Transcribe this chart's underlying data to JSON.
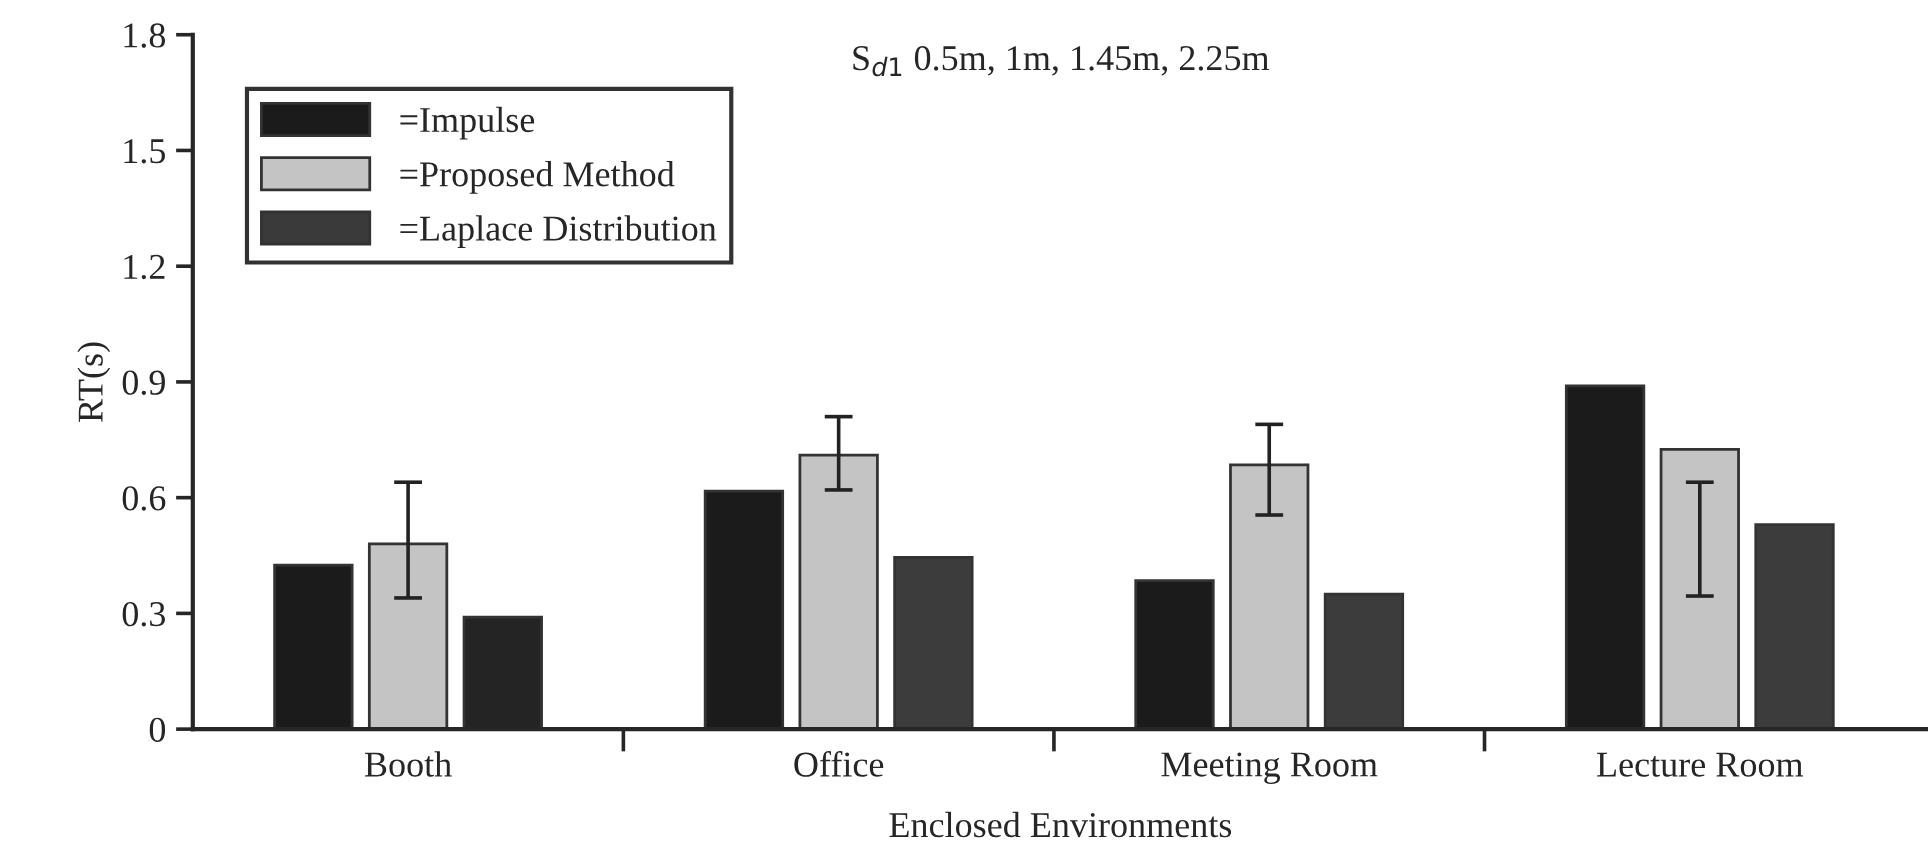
{
  "chart_data": {
    "type": "bar",
    "title": "S$_{d1}$ 0.5m, 1m, 1.45m, 2.25m",
    "xlabel": "Enclosed Environments",
    "ylabel": "RT(s)",
    "categories": [
      "Booth",
      "Office",
      "Meeting Room",
      "Lecture Room"
    ],
    "series": [
      {
        "name": "=Impulse",
        "color": "#1b1b1b",
        "values": [
          0.425,
          0.617,
          0.385,
          0.89
        ]
      },
      {
        "name": "=Proposed Method",
        "color": "#c4c4c4",
        "values": [
          0.48,
          0.71,
          0.685,
          0.725
        ],
        "errors": [
          [
            0.34,
            0.64
          ],
          [
            0.62,
            0.81
          ],
          [
            0.555,
            0.79
          ],
          [
            0.345,
            0.64
          ]
        ]
      },
      {
        "name": "=Laplace Distribution",
        "color": "#3a3a3a",
        "colors": [
          "#242424",
          "#3c3c3c",
          "#3c3c3c",
          "#3c3c3c"
        ],
        "values": [
          0.29,
          0.445,
          0.35,
          0.53
        ]
      }
    ],
    "ylim": [
      0,
      1.8
    ],
    "yticks": [
      0,
      0.3,
      0.6,
      0.9,
      1.2,
      1.5,
      1.8
    ],
    "grid": false,
    "legend": "top left"
  }
}
